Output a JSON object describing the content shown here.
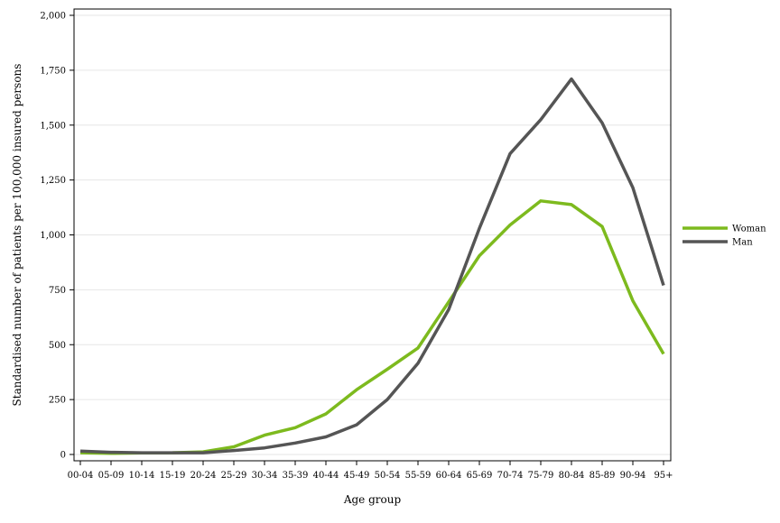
{
  "chart_data": {
    "type": "line",
    "title": "",
    "xlabel": "Age group",
    "ylabel": "Standardised number of patients per 100,000 insured persons",
    "categories": [
      "00-04",
      "05-09",
      "10-14",
      "15-19",
      "20-24",
      "25-29",
      "30-34",
      "35-39",
      "40-44",
      "45-49",
      "50-54",
      "55-59",
      "60-64",
      "65-69",
      "70-74",
      "75-79",
      "80-84",
      "85-89",
      "90-94",
      "95+"
    ],
    "ylim": [
      0,
      2000
    ],
    "yticks": [
      0,
      250,
      500,
      750,
      1000,
      1250,
      1500,
      1750,
      2000
    ],
    "ytick_labels": [
      "0",
      "250",
      "500",
      "750",
      "1,000",
      "1,250",
      "1,500",
      "1,750",
      "2,000"
    ],
    "grid": true,
    "legend_position": "right",
    "series": [
      {
        "name": "Woman",
        "color": "#7dba1e",
        "values": [
          8,
          5,
          7,
          8,
          12,
          35,
          88,
          122,
          185,
          295,
          388,
          485,
          695,
          905,
          1045,
          1155,
          1138,
          1038,
          700,
          458
        ]
      },
      {
        "name": "Man",
        "color": "#555555",
        "values": [
          15,
          10,
          8,
          8,
          8,
          18,
          30,
          52,
          80,
          135,
          250,
          415,
          660,
          1030,
          1370,
          1525,
          1710,
          1510,
          1215,
          770
        ]
      }
    ]
  }
}
